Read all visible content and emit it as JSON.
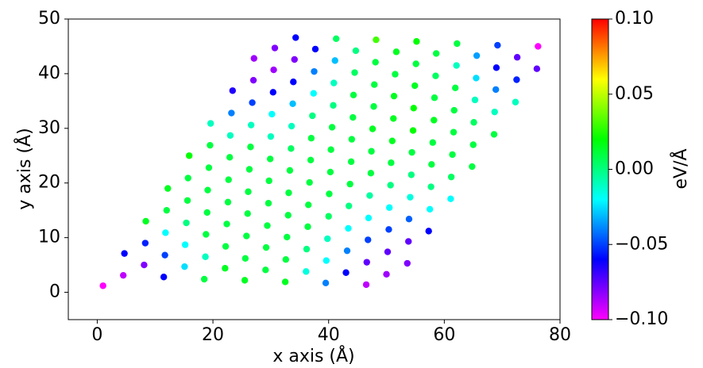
{
  "chart_data": {
    "type": "scatter",
    "x_label": "x axis (Å)",
    "y_label": "y axis (Å)",
    "colorbar_label": "eV/Å",
    "xlim": [
      -5,
      80
    ],
    "xticks": [
      0,
      20,
      40,
      60,
      80
    ],
    "ylim": [
      -5,
      50
    ],
    "yticks": [
      0,
      10,
      20,
      30,
      40,
      50
    ],
    "clim": [
      -0.1,
      0.1
    ],
    "cticks": [
      {
        "value": -0.1,
        "label": "−0.10"
      },
      {
        "value": -0.05,
        "label": "−0.05"
      },
      {
        "value": 0,
        "label": "0.00"
      },
      {
        "value": 0.05,
        "label": "0.05"
      },
      {
        "value": 0.1,
        "label": "0.10"
      }
    ],
    "colormap": "gist_rainbow",
    "x": [
      1.0,
      4.5,
      4.7,
      8.1,
      8.3,
      8.4,
      11.5,
      11.7,
      11.8,
      12.0,
      12.2,
      15.1,
      15.2,
      15.4,
      15.6,
      15.7,
      15.9,
      18.5,
      18.7,
      18.8,
      19.0,
      19.1,
      19.3,
      19.5,
      19.6,
      22.1,
      22.2,
      22.4,
      22.6,
      22.7,
      22.9,
      23.0,
      23.2,
      23.4,
      25.5,
      25.6,
      25.8,
      26.0,
      26.1,
      26.3,
      26.5,
      26.6,
      26.8,
      27.0,
      27.1,
      29.1,
      29.2,
      29.4,
      29.6,
      29.7,
      29.9,
      30.0,
      30.2,
      30.4,
      30.5,
      30.7,
      32.5,
      32.6,
      32.8,
      33.0,
      33.1,
      33.3,
      33.5,
      33.6,
      33.8,
      33.9,
      34.1,
      34.3,
      36.1,
      36.2,
      36.4,
      36.5,
      36.7,
      36.9,
      37.0,
      37.2,
      37.4,
      37.5,
      37.7,
      39.5,
      39.6,
      39.8,
      40.0,
      40.1,
      40.3,
      40.4,
      40.6,
      40.8,
      40.9,
      41.1,
      41.3,
      43.0,
      43.2,
      43.4,
      43.5,
      43.7,
      43.9,
      44.0,
      44.2,
      44.3,
      44.5,
      44.7,
      46.5,
      46.6,
      46.8,
      46.9,
      47.1,
      47.3,
      47.4,
      47.6,
      47.8,
      47.9,
      48.1,
      48.2,
      50.0,
      50.2,
      50.4,
      50.5,
      50.7,
      50.8,
      51.0,
      51.2,
      51.3,
      51.5,
      51.7,
      53.6,
      53.8,
      53.9,
      54.1,
      54.3,
      54.4,
      54.6,
      54.7,
      54.9,
      55.1,
      55.2,
      57.3,
      57.5,
      57.7,
      57.8,
      58.0,
      58.2,
      58.3,
      58.5,
      58.6,
      61.1,
      61.2,
      61.4,
      61.6,
      61.7,
      61.9,
      62.1,
      62.2,
      64.8,
      65.0,
      65.1,
      65.3,
      65.5,
      65.6,
      68.6,
      68.7,
      68.9,
      69.0,
      69.2,
      72.3,
      72.5,
      72.6,
      76.0,
      76.2
    ],
    "y": [
      1.2,
      3.1,
      7.1,
      5.0,
      9.0,
      13.0,
      2.8,
      6.8,
      10.9,
      15.0,
      19.0,
      4.7,
      8.7,
      12.7,
      16.8,
      20.9,
      25.0,
      2.4,
      6.5,
      10.6,
      14.6,
      18.7,
      22.8,
      26.9,
      30.9,
      4.4,
      8.4,
      12.5,
      16.5,
      20.6,
      24.7,
      28.7,
      32.8,
      36.9,
      2.2,
      6.2,
      10.3,
      14.4,
      18.4,
      22.5,
      26.6,
      30.6,
      34.7,
      38.8,
      42.8,
      4.1,
      8.2,
      12.2,
      16.3,
      20.4,
      24.4,
      28.5,
      32.6,
      36.6,
      40.7,
      44.7,
      1.9,
      6.0,
      10.1,
      14.1,
      18.2,
      22.3,
      26.3,
      30.4,
      34.5,
      38.5,
      42.6,
      46.6,
      3.8,
      7.9,
      12.0,
      16.0,
      20.1,
      24.2,
      28.2,
      32.3,
      36.4,
      40.4,
      44.5,
      1.7,
      5.8,
      9.8,
      13.9,
      18.0,
      22.0,
      26.1,
      30.2,
      34.2,
      38.3,
      42.4,
      46.4,
      3.6,
      7.6,
      11.7,
      15.8,
      19.8,
      23.9,
      28.0,
      32.0,
      36.1,
      40.2,
      44.2,
      1.4,
      5.5,
      9.6,
      13.6,
      17.7,
      21.8,
      25.8,
      29.9,
      34.0,
      38.0,
      42.1,
      46.2,
      3.3,
      7.4,
      11.5,
      15.5,
      19.6,
      23.7,
      27.7,
      31.8,
      35.9,
      39.9,
      44.0,
      5.3,
      9.3,
      13.4,
      17.4,
      21.5,
      25.6,
      29.6,
      33.7,
      37.8,
      41.8,
      45.9,
      11.2,
      15.2,
      19.3,
      23.4,
      27.4,
      31.5,
      35.6,
      39.6,
      43.7,
      17.1,
      21.1,
      25.2,
      29.3,
      33.3,
      37.4,
      41.5,
      45.5,
      23.0,
      27.0,
      31.1,
      35.2,
      39.2,
      43.3,
      28.9,
      33.0,
      37.1,
      41.1,
      45.2,
      34.8,
      38.9,
      43.0,
      40.9,
      45.0
    ],
    "values": [
      -0.1,
      -0.09,
      -0.06,
      -0.08,
      -0.055,
      0.015,
      -0.06,
      -0.05,
      -0.02,
      0.01,
      0.015,
      -0.025,
      -0.02,
      0.0,
      0.01,
      0.01,
      0.02,
      0.01,
      -0.01,
      0.01,
      0.01,
      0.01,
      0.01,
      0.01,
      -0.01,
      0.015,
      0.01,
      0.01,
      0.01,
      0.01,
      0.01,
      -0.01,
      -0.04,
      -0.065,
      0.015,
      0.01,
      0.01,
      0.01,
      0.01,
      0.01,
      0.01,
      -0.01,
      -0.05,
      -0.08,
      -0.085,
      0.01,
      0.01,
      0.01,
      0.01,
      0.01,
      0.01,
      -0.01,
      -0.02,
      -0.06,
      -0.085,
      -0.08,
      0.015,
      0.01,
      0.01,
      0.01,
      0.01,
      0.01,
      0.005,
      -0.01,
      -0.03,
      -0.06,
      -0.08,
      -0.06,
      -0.015,
      0.0,
      0.01,
      0.01,
      0.01,
      0.01,
      0.01,
      0.0,
      -0.02,
      -0.04,
      -0.06,
      -0.04,
      -0.02,
      -0.01,
      0.005,
      0.01,
      0.01,
      0.01,
      0.01,
      0.0,
      -0.01,
      -0.03,
      0.005,
      -0.06,
      -0.04,
      -0.02,
      0.0,
      0.01,
      0.01,
      0.01,
      0.01,
      0.01,
      0.005,
      0.0,
      -0.09,
      -0.075,
      -0.05,
      -0.02,
      -0.005,
      0.01,
      0.01,
      0.015,
      0.01,
      0.01,
      0.01,
      0.03,
      -0.085,
      -0.075,
      -0.05,
      -0.02,
      0.0,
      0.01,
      0.015,
      0.015,
      0.015,
      0.01,
      0.015,
      -0.08,
      -0.075,
      -0.045,
      -0.015,
      0.0,
      0.01,
      0.02,
      0.02,
      0.015,
      0.01,
      0.02,
      -0.06,
      -0.02,
      0.0,
      0.01,
      0.01,
      0.015,
      0.01,
      0.005,
      0.01,
      -0.02,
      0.005,
      0.01,
      0.01,
      0.01,
      0.01,
      -0.01,
      0.01,
      0.01,
      0.01,
      0.005,
      -0.01,
      -0.025,
      -0.035,
      0.01,
      -0.01,
      -0.04,
      -0.06,
      -0.05,
      -0.01,
      -0.055,
      -0.075,
      -0.075,
      -0.1
    ]
  }
}
